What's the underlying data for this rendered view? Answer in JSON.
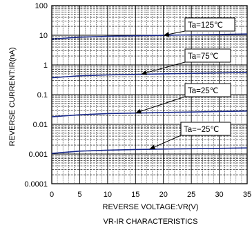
{
  "chart_data": {
    "type": "line",
    "title": "VR-IR CHARACTERISTICS",
    "xlabel": "REVERSE VOLTAGE:VR(V)",
    "ylabel": "REVERSE CURRENT:IR(nA)",
    "x_scale": "linear",
    "y_scale": "log",
    "xlim": [
      0,
      35
    ],
    "ylim": [
      0.0001,
      100
    ],
    "x_ticks": [
      "0",
      "5",
      "10",
      "15",
      "20",
      "25",
      "30",
      "35"
    ],
    "y_ticks": [
      "0.0001",
      "0.001",
      "0.01",
      "0.1",
      "1",
      "10",
      "100"
    ],
    "grid": true,
    "line_color": "#1a2a8c",
    "series": [
      {
        "name": "Ta=125℃",
        "x": [
          0,
          5,
          10,
          15,
          20,
          25,
          30,
          35
        ],
        "y": [
          7.4,
          8.6,
          9.2,
          9.6,
          9.9,
          10.3,
          10.6,
          11.0
        ]
      },
      {
        "name": "Ta=75℃",
        "x": [
          0,
          5,
          10,
          15,
          20,
          25,
          30,
          35
        ],
        "y": [
          0.37,
          0.43,
          0.46,
          0.48,
          0.5,
          0.52,
          0.54,
          0.56
        ]
      },
      {
        "name": "Ta=25℃",
        "x": [
          0,
          5,
          10,
          15,
          20,
          25,
          30,
          35
        ],
        "y": [
          0.018,
          0.021,
          0.023,
          0.024,
          0.025,
          0.026,
          0.027,
          0.028
        ]
      },
      {
        "name": "Ta=−25℃",
        "x": [
          0,
          5,
          10,
          15,
          20,
          25,
          30,
          35
        ],
        "y": [
          0.00105,
          0.00125,
          0.00135,
          0.00142,
          0.00147,
          0.00151,
          0.00155,
          0.0016
        ]
      }
    ],
    "annotations": [
      {
        "series": "Ta=125℃",
        "text": "Ta=125℃",
        "x": 20,
        "y": 9.9
      },
      {
        "series": "Ta=75℃",
        "text": "Ta=75℃",
        "x": 16,
        "y": 0.49
      },
      {
        "series": "Ta=25℃",
        "text": "Ta=25℃",
        "x": 15,
        "y": 0.024
      },
      {
        "series": "Ta=−25℃",
        "text": "Ta=−25℃",
        "x": 17.5,
        "y": 0.00145
      }
    ]
  }
}
